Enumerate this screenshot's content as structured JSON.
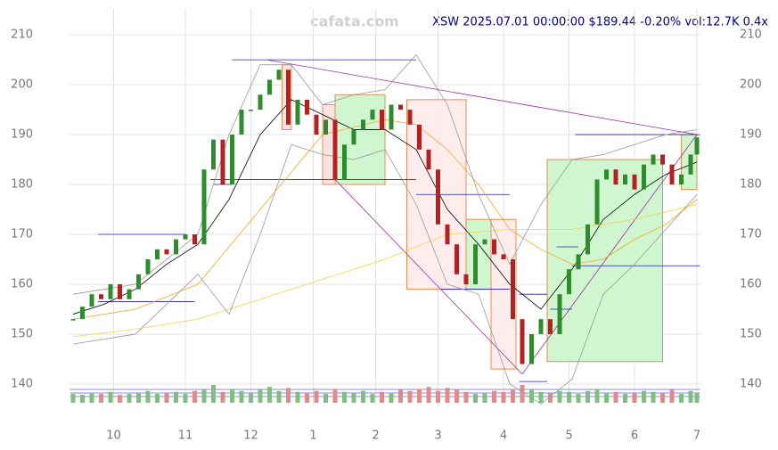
{
  "chart_data": {
    "type": "candlestick",
    "title": "XSW 2025.07.01 00:00:00 $189.44 -0.20% vol:12.7K 0.4x",
    "watermark": "cafata.com",
    "x": [
      0,
      3,
      6,
      9,
      12,
      15,
      18,
      21,
      24,
      27,
      30,
      33,
      36,
      39,
      42,
      45,
      48,
      51,
      54,
      57,
      60,
      63,
      66,
      69,
      72,
      75,
      78,
      81,
      84,
      87,
      90,
      93,
      96,
      99,
      102,
      105,
      108,
      111,
      114,
      117,
      120,
      123,
      126,
      129,
      132,
      135,
      138,
      141,
      144,
      147,
      150,
      153,
      156,
      159,
      162,
      165,
      168,
      171,
      174,
      177,
      180,
      183,
      186,
      189,
      192,
      195,
      198,
      200
    ],
    "close": [
      153,
      155.5,
      158,
      157,
      160,
      157,
      159,
      162,
      165,
      167,
      166,
      169,
      170,
      168,
      183,
      189,
      180,
      190,
      195,
      195,
      198,
      201,
      203,
      192,
      197,
      194,
      190,
      193,
      181,
      188,
      191,
      193,
      195,
      191,
      196,
      195,
      192,
      187,
      183,
      172,
      168,
      162,
      160,
      168,
      169,
      166,
      165,
      153,
      144,
      150,
      153,
      150,
      158,
      163,
      166,
      172,
      181,
      183,
      180,
      182,
      179,
      184,
      186,
      184,
      180,
      182,
      186,
      189.44
    ],
    "volume": [
      9,
      8,
      10,
      9,
      11,
      8,
      9,
      10,
      12,
      9,
      10,
      11,
      9,
      12,
      13,
      18,
      11,
      14,
      12,
      10,
      13,
      16,
      12,
      15,
      11,
      10,
      12,
      9,
      14,
      11,
      10,
      12,
      9,
      11,
      10,
      13,
      12,
      14,
      16,
      12,
      15,
      13,
      11,
      9,
      10,
      12,
      11,
      14,
      18,
      13,
      11,
      10,
      12,
      11,
      9,
      12,
      14,
      10,
      11,
      9,
      10,
      12,
      11,
      10,
      13,
      9,
      12,
      10
    ],
    "ma_lines": [
      {
        "color": "#000000",
        "x": [
          0,
          10,
          20,
          30,
          40,
          50,
          60,
          70,
          80,
          90,
          100,
          110,
          120,
          130,
          140,
          150,
          160,
          170,
          180,
          190,
          200
        ],
        "values": [
          154,
          156,
          159,
          164,
          168,
          177,
          190,
          197,
          194,
          191,
          191,
          187,
          175,
          168,
          160,
          155,
          163,
          173,
          178,
          182,
          184.5
        ]
      },
      {
        "color": "#f5a623",
        "x": [
          0,
          20,
          40,
          60,
          80,
          100,
          110,
          120,
          130,
          140,
          150,
          160,
          170,
          180,
          190,
          200
        ],
        "values": [
          153,
          155,
          160,
          175,
          190,
          193,
          192,
          187,
          180,
          171,
          167,
          164,
          165,
          169,
          172,
          177
        ]
      },
      {
        "color": "#f2d23c",
        "x": [
          0,
          20,
          40,
          60,
          80,
          100,
          120,
          140,
          160,
          180,
          200
        ],
        "values": [
          149.5,
          151,
          153,
          157,
          161,
          165,
          170,
          171,
          171,
          173,
          176
        ]
      },
      {
        "color": "#999999",
        "x": [
          0,
          20,
          40,
          50,
          60,
          70,
          80,
          90,
          100,
          110,
          120,
          130,
          140,
          150,
          160,
          170,
          180,
          190,
          200
        ],
        "values": [
          158,
          160,
          170,
          190,
          204,
          204,
          196,
          198,
          199,
          206,
          196,
          178,
          164,
          176,
          185,
          186,
          188,
          190,
          191
        ]
      },
      {
        "color": "#999999",
        "x": [
          0,
          20,
          40,
          50,
          60,
          70,
          80,
          90,
          100,
          110,
          120,
          130,
          140,
          150,
          160,
          170,
          180,
          190,
          200
        ],
        "values": [
          148,
          150,
          162,
          154,
          170,
          188,
          186,
          185,
          187,
          176,
          160,
          158,
          140,
          136,
          141,
          158,
          164,
          171,
          178
        ]
      }
    ],
    "boxes": [
      {
        "x": [
          67,
          70
        ],
        "y": [
          191,
          204
        ],
        "color": "#ffdddd"
      },
      {
        "x": [
          80,
          84
        ],
        "y": [
          180,
          196
        ],
        "color": "#ffdddd"
      },
      {
        "x": [
          84,
          100
        ],
        "y": [
          180,
          198
        ],
        "color": "#c8f5c8"
      },
      {
        "x": [
          107,
          126
        ],
        "y": [
          159,
          197
        ],
        "color": "#ffeaea"
      },
      {
        "x": [
          126,
          134
        ],
        "y": [
          159,
          173
        ],
        "color": "#c8f5c8"
      },
      {
        "x": [
          134,
          142
        ],
        "y": [
          143,
          173
        ],
        "color": "#ffeaea"
      },
      {
        "x": [
          152,
          189
        ],
        "y": [
          144.5,
          185
        ],
        "color": "#c8f5c8"
      },
      {
        "x": [
          195,
          200
        ],
        "y": [
          179,
          190
        ],
        "color": "#c8f5c8"
      }
    ],
    "levels": [
      {
        "x": [
          51,
          110
        ],
        "y": 205
      },
      {
        "x": [
          8,
          36
        ],
        "y": 170
      },
      {
        "x": [
          8,
          39
        ],
        "y": 156.5
      },
      {
        "x": [
          44,
          110
        ],
        "y": 181
      },
      {
        "x": [
          45,
          51
        ],
        "y": 180
      },
      {
        "x": [
          110,
          140
        ],
        "y": 178
      },
      {
        "x": [
          118,
          140
        ],
        "y": 159
      },
      {
        "x": [
          143,
          152
        ],
        "y": 158
      },
      {
        "x": [
          143,
          152
        ],
        "y": 140.5
      },
      {
        "x": [
          153,
          160
        ],
        "y": 155
      },
      {
        "x": [
          155,
          162
        ],
        "y": 167.5
      },
      {
        "x": [
          160,
          201
        ],
        "y": 163.7
      },
      {
        "x": [
          161,
          201
        ],
        "y": 190
      }
    ],
    "trendlines": [
      {
        "x": [
          62,
          200
        ],
        "y": [
          205,
          190
        ]
      },
      {
        "x": [
          84,
          144
        ],
        "y": [
          181,
          142
        ]
      },
      {
        "x": [
          144,
          200
        ],
        "y": [
          142,
          190
        ]
      }
    ],
    "xlim": [
      -1,
      201
    ],
    "ylim": [
      135.7,
      215.2
    ],
    "xticks": [
      {
        "value": 13,
        "label": "10"
      },
      {
        "value": 36,
        "label": "11"
      },
      {
        "value": 57,
        "label": "12"
      },
      {
        "value": 77,
        "label": "1"
      },
      {
        "value": 97,
        "label": "2"
      },
      {
        "value": 117,
        "label": "3"
      },
      {
        "value": 138,
        "label": "4"
      },
      {
        "value": 159,
        "label": "5"
      },
      {
        "value": 180,
        "label": "6"
      },
      {
        "value": 200,
        "label": "7"
      }
    ],
    "yticks": [
      140,
      150,
      160,
      170,
      180,
      190,
      200,
      210
    ],
    "grid": true,
    "up_color": "#2e8b2e",
    "down_color": "#b22222"
  }
}
